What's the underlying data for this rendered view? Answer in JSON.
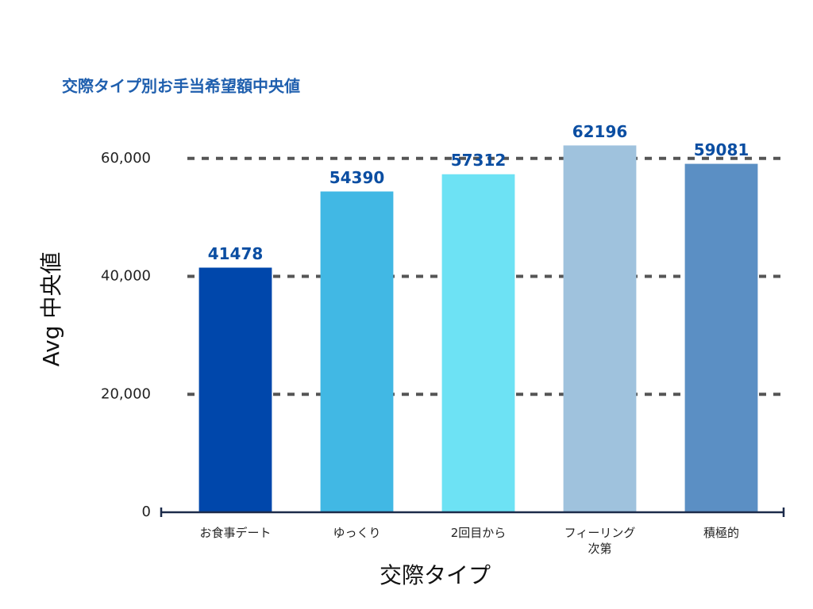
{
  "chart_data": {
    "type": "bar",
    "title": "交際タイプ別お手当希望額中央値",
    "x_label": "交際タイプ",
    "y_label": "Avg 中央値",
    "categories": [
      "お食事デート",
      "ゆっくり",
      "2回目から",
      "フィーリング次第",
      "積極的"
    ],
    "values": [
      41478,
      54390,
      57312,
      62196,
      59081
    ],
    "colors": [
      "#0047ab",
      "#41b8e4",
      "#6de2f4",
      "#9fc2dd",
      "#5b8fc4"
    ],
    "label_color": "#0b4ea2",
    "ylim": [
      0,
      64000
    ],
    "yticks": [
      0,
      {
        "value": 20000,
        "label": "20,000"
      },
      {
        "value": 40000,
        "label": "40,000"
      },
      {
        "value": 60000,
        "label": "60,000"
      }
    ],
    "grid": true
  }
}
